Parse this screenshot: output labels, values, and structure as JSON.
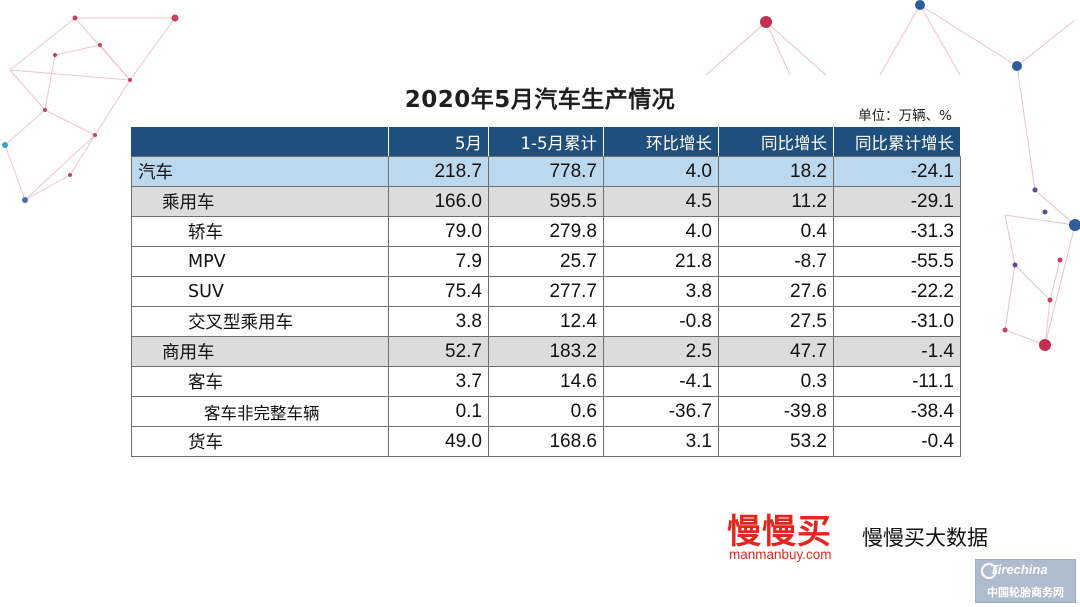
{
  "title": "2020年5月汽车生产情况",
  "unit": "单位：万辆、%",
  "table": {
    "headers": [
      "",
      "5月",
      "1-5月累计",
      "环比增长",
      "同比增长",
      "同比累计增长"
    ],
    "rows": [
      {
        "label": "汽车",
        "level": 0,
        "values": [
          "218.7",
          "778.7",
          "4.0",
          "18.2",
          "-24.1"
        ]
      },
      {
        "label": "乘用车",
        "level": 1,
        "values": [
          "166.0",
          "595.5",
          "4.5",
          "11.2",
          "-29.1"
        ]
      },
      {
        "label": "轿车",
        "level": 2,
        "values": [
          "79.0",
          "279.8",
          "4.0",
          "0.4",
          "-31.3"
        ]
      },
      {
        "label": "MPV",
        "level": 2,
        "values": [
          "7.9",
          "25.7",
          "21.8",
          "-8.7",
          "-55.5"
        ]
      },
      {
        "label": "SUV",
        "level": 2,
        "values": [
          "75.4",
          "277.7",
          "3.8",
          "27.6",
          "-22.2"
        ]
      },
      {
        "label": "交叉型乘用车",
        "level": 2,
        "values": [
          "3.8",
          "12.4",
          "-0.8",
          "27.5",
          "-31.0"
        ]
      },
      {
        "label": "商用车",
        "level": 1,
        "values": [
          "52.7",
          "183.2",
          "2.5",
          "47.7",
          "-1.4"
        ]
      },
      {
        "label": "客车",
        "level": 2,
        "values": [
          "3.7",
          "14.6",
          "-4.1",
          "0.3",
          "-11.1"
        ]
      },
      {
        "label": "客车非完整车辆",
        "level": 3,
        "values": [
          "0.1",
          "0.6",
          "-36.7",
          "-39.8",
          "-38.4"
        ]
      },
      {
        "label": "货车",
        "level": 2,
        "values": [
          "49.0",
          "168.6",
          "3.1",
          "53.2",
          "-0.4"
        ]
      }
    ]
  },
  "brand": {
    "logo_text": "慢慢买",
    "logo_url": "manmanbuy.com",
    "tagline": "慢慢买大数据",
    "color": "#e0281e"
  },
  "watermark": {
    "logo": "Tirechina",
    "text": "中国轮胎商务网"
  },
  "colors": {
    "header_bg": "#1f4f7d",
    "row_total_bg": "#bcd8ee",
    "row_group_bg": "#dcdcdc"
  }
}
